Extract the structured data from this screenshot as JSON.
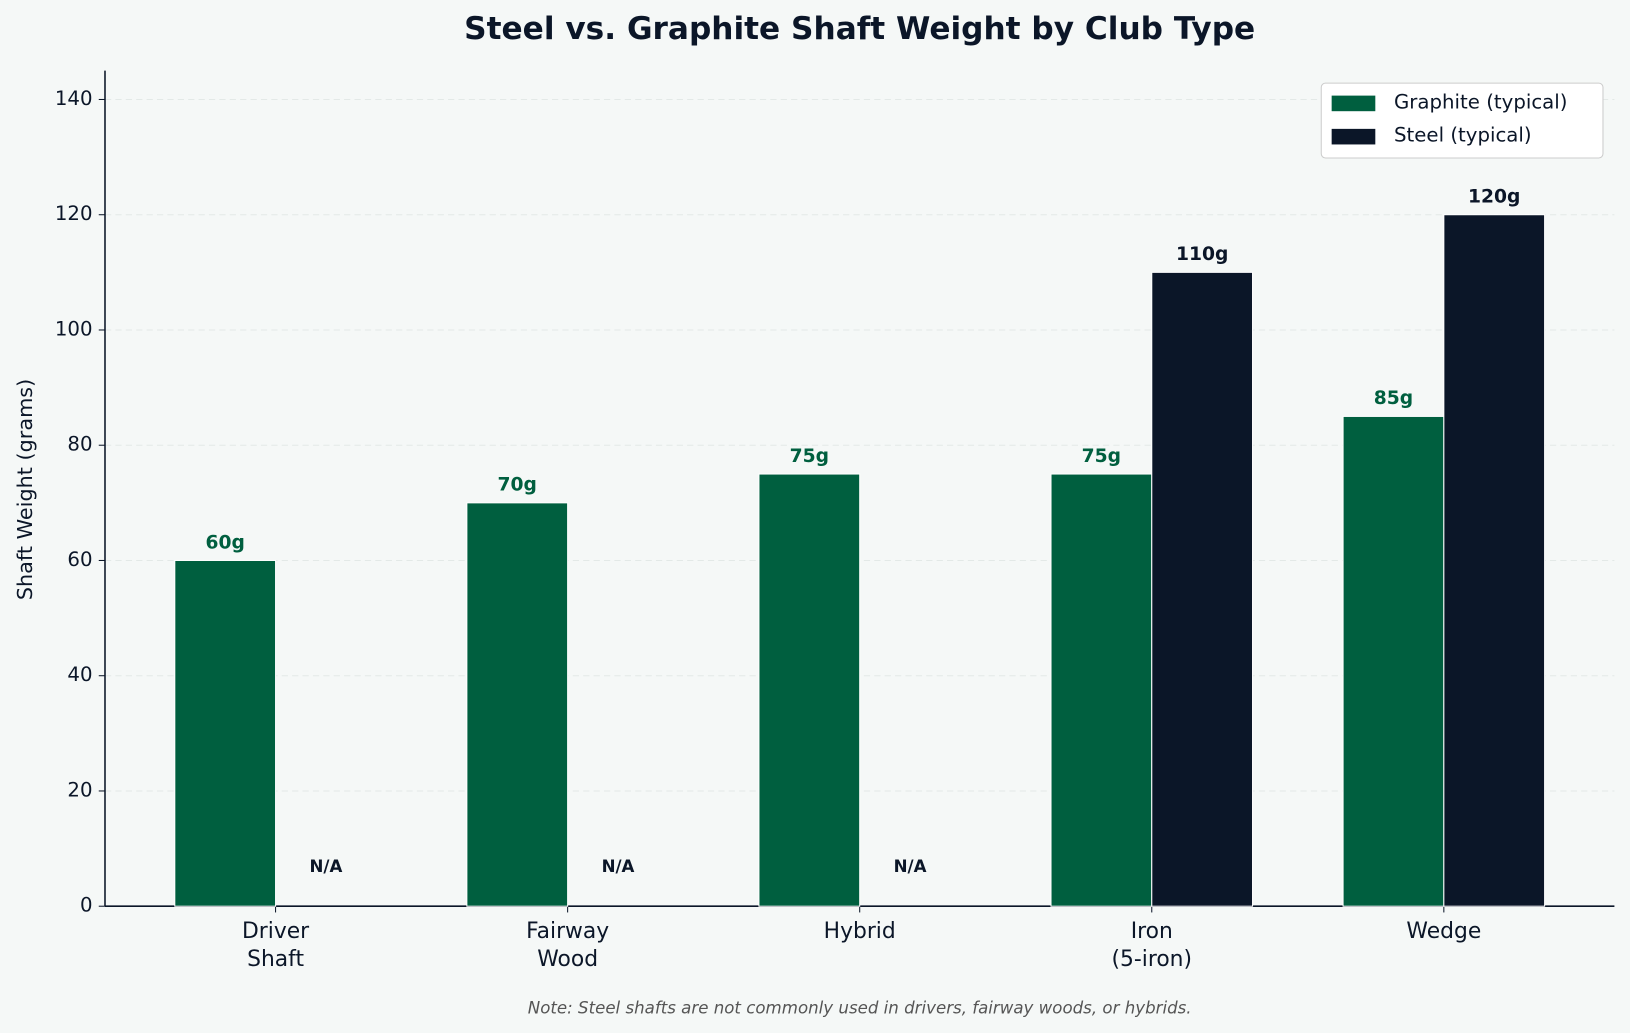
{
  "chart_data": {
    "type": "bar",
    "title": "Steel vs. Graphite Shaft Weight by Club Type",
    "y_label": "Shaft Weight (grams)",
    "note": "Note: Steel shafts are not commonly used in drivers, fairway woods, or hybrids.",
    "categories": [
      "Driver\nShaft",
      "Fairway\nWood",
      "Hybrid",
      "Iron\n(5-iron)",
      "Wedge"
    ],
    "series": [
      {
        "name": "Graphite (typical)",
        "color": "#005f3f",
        "values": [
          60,
          70,
          75,
          75,
          85
        ],
        "value_labels": [
          "60g",
          "70g",
          "75g",
          "75g",
          "85g"
        ]
      },
      {
        "name": "Steel (typical)",
        "color": "#0b1628",
        "values": [
          null,
          null,
          null,
          110,
          120
        ],
        "value_labels": [
          "N/A",
          "N/A",
          "N/A",
          "110g",
          "120g"
        ]
      }
    ],
    "ylim": [
      0,
      145
    ],
    "yticks": [
      0,
      20,
      40,
      60,
      80,
      100,
      120,
      140
    ],
    "grid": true,
    "legend": "upper right"
  }
}
